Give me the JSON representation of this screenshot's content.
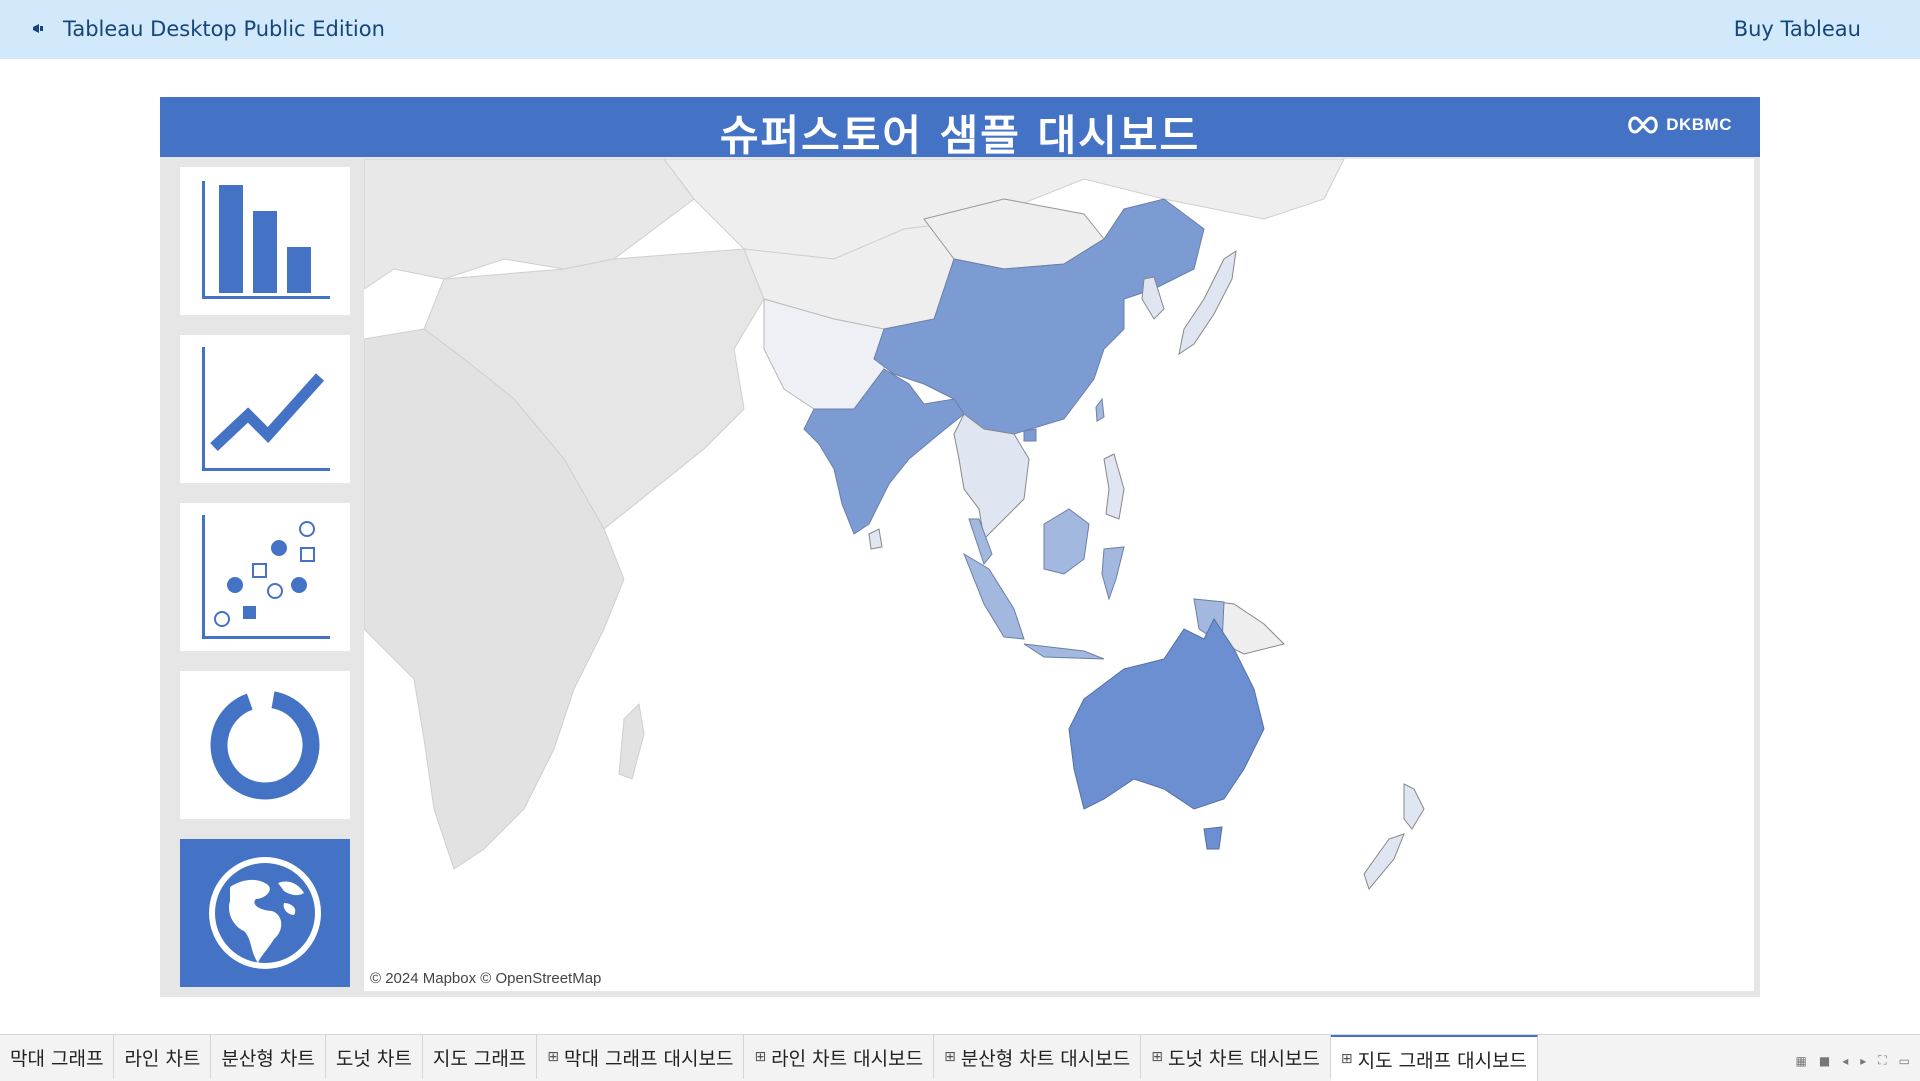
{
  "topbar": {
    "app_title": "Tableau Desktop Public Edition",
    "buy_label": "Buy Tableau",
    "icon": "megaphone-icon"
  },
  "dashboard": {
    "title": "슈퍼스토어 샘플 대시보드",
    "logo_text": "DKBMC",
    "accent_color": "#4472c4",
    "nav_buttons": [
      {
        "name": "bar-chart-icon",
        "active": false
      },
      {
        "name": "line-chart-icon",
        "active": false
      },
      {
        "name": "scatter-plot-icon",
        "active": false
      },
      {
        "name": "donut-chart-icon",
        "active": false
      },
      {
        "name": "globe-icon",
        "active": true
      }
    ],
    "map_attribution": "© 2024 Mapbox © OpenStreetMap",
    "highlight_colors": {
      "strong": "#6b8fd0",
      "medium": "#a3b8df",
      "light": "#dfe5f1",
      "none": "#e8e8e8"
    }
  },
  "tabs": [
    {
      "label": "막대 그래프",
      "dashboard": false,
      "active": false
    },
    {
      "label": "라인 차트",
      "dashboard": false,
      "active": false
    },
    {
      "label": "분산형 차트",
      "dashboard": false,
      "active": false
    },
    {
      "label": "도넛 차트",
      "dashboard": false,
      "active": false
    },
    {
      "label": "지도 그래프",
      "dashboard": false,
      "active": false
    },
    {
      "label": "막대 그래프 대시보드",
      "dashboard": true,
      "active": false
    },
    {
      "label": "라인 차트 대시보드",
      "dashboard": true,
      "active": false
    },
    {
      "label": "분산형 차트 대시보드",
      "dashboard": true,
      "active": false
    },
    {
      "label": "도넛 차트 대시보드",
      "dashboard": true,
      "active": false
    },
    {
      "label": "지도 그래프 대시보드",
      "dashboard": true,
      "active": true
    }
  ]
}
